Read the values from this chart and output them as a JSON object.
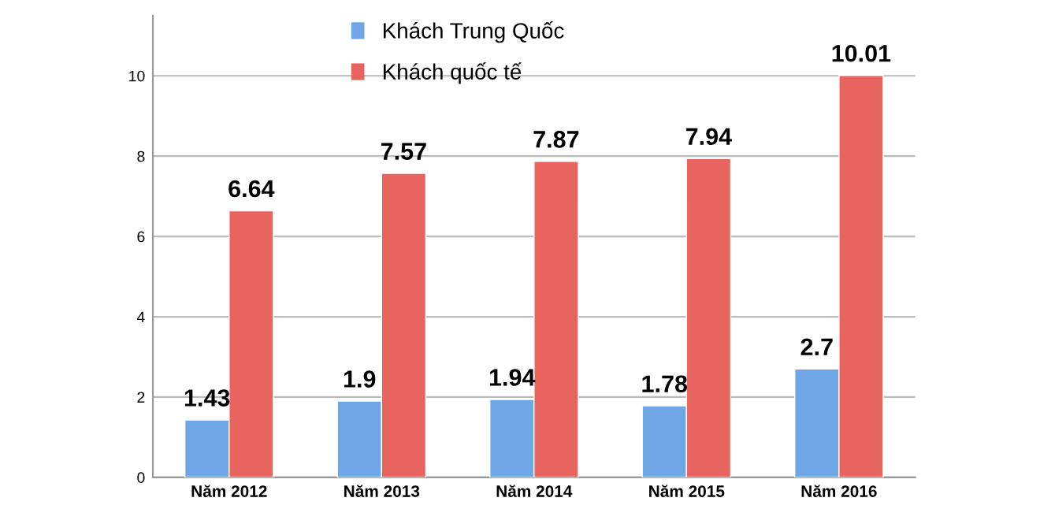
{
  "chart_data": {
    "type": "bar",
    "categories": [
      "Năm 2012",
      "Năm 2013",
      "Năm 2014",
      "Năm 2015",
      "Năm 2016"
    ],
    "series": [
      {
        "name": "Khách Trung Quốc",
        "color": "#6fa6e6",
        "values": [
          1.43,
          1.9,
          1.94,
          1.78,
          2.7
        ]
      },
      {
        "name": "Khách quốc tế",
        "color": "#e8645e",
        "values": [
          6.64,
          7.57,
          7.87,
          7.94,
          10.01
        ]
      }
    ],
    "ylim": [
      0,
      11.5
    ],
    "yticks": [
      0,
      2,
      4,
      6,
      8,
      10
    ],
    "grid": "y",
    "legend": "top",
    "data_labels": true
  }
}
